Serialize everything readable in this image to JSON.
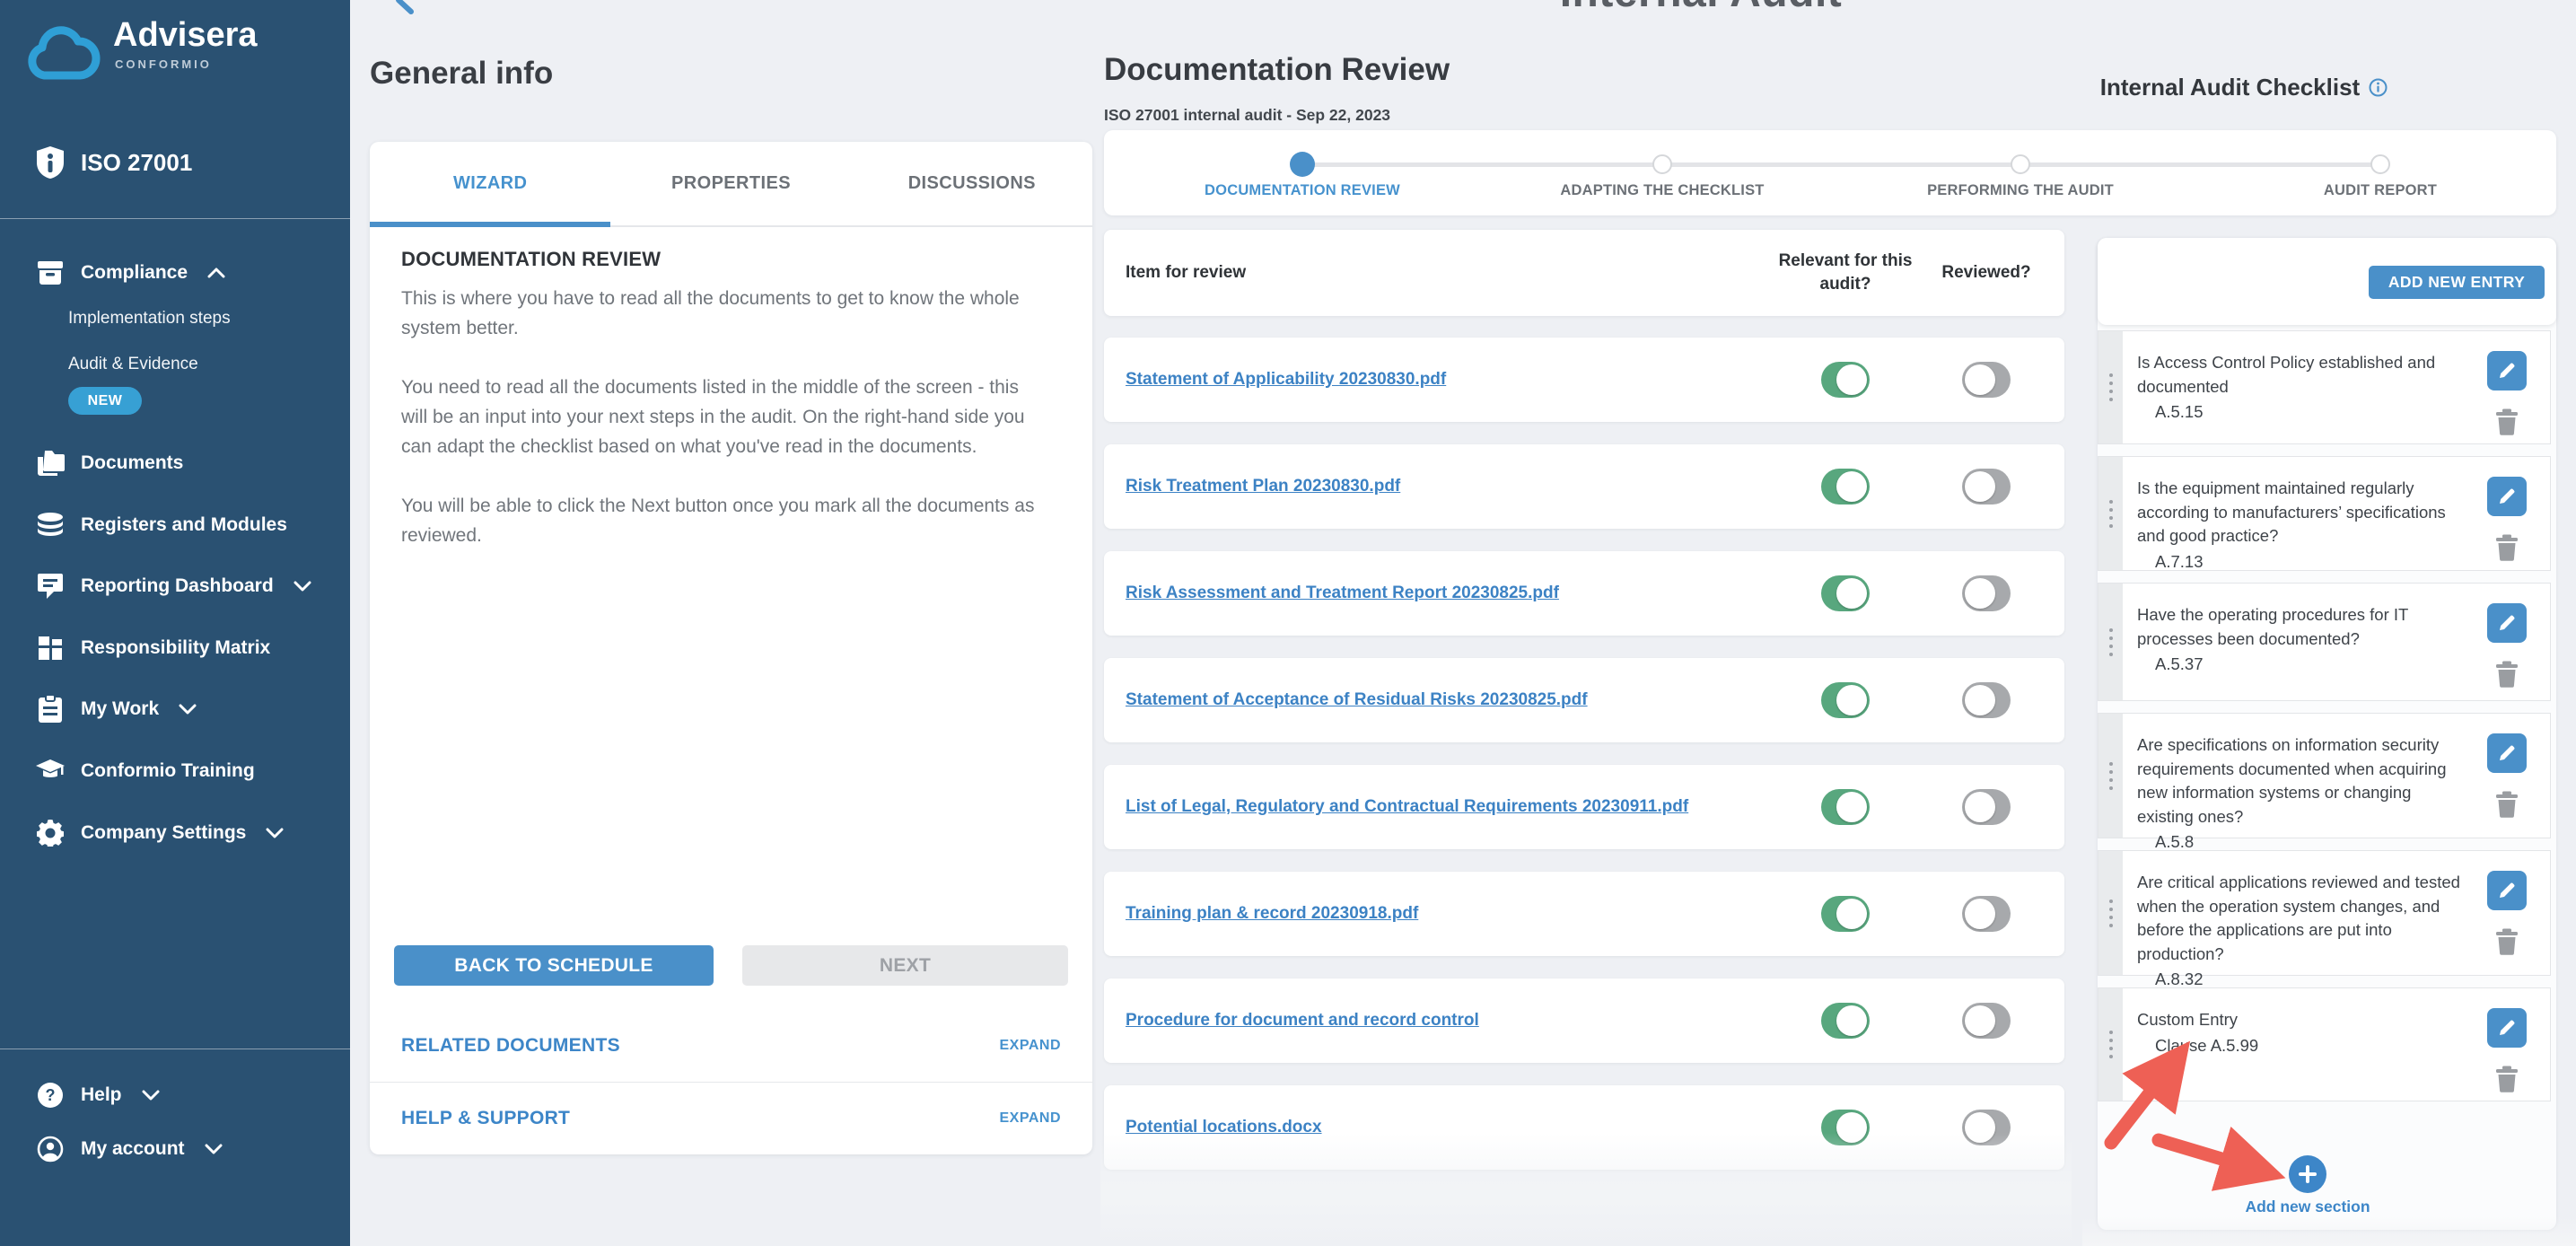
{
  "page": {
    "clipped_title": "Internal Audit"
  },
  "colors": {
    "sidebar_bg": "#2a5172",
    "accent_blue": "#4a90c9",
    "link_blue": "#3c82c4",
    "badge_blue": "#37a0d4",
    "toggle_on_green": "#58a77e",
    "toggle_off_gray": "#a7a9ac",
    "arrow_red": "#ee6055",
    "page_bg": "#eef0f4"
  },
  "sidebar": {
    "brand": "Advisera",
    "product": "CONFORMIO",
    "standard": "ISO 27001",
    "compliance": "Compliance",
    "implementation": "Implementation steps",
    "audit_evidence": "Audit & Evidence",
    "new_badge": "NEW",
    "documents": "Documents",
    "registers": "Registers and Modules",
    "reporting": "Reporting Dashboard",
    "responsibility": "Responsibility Matrix",
    "my_work": "My Work",
    "training": "Conformio Training",
    "settings": "Company Settings",
    "help": "Help",
    "account": "My account"
  },
  "general_info": {
    "title": "General info",
    "tabs": [
      {
        "label": "WIZARD",
        "active": true
      },
      {
        "label": "PROPERTIES"
      },
      {
        "label": "DISCUSSIONS"
      }
    ],
    "section_title": "DOCUMENTATION REVIEW",
    "paragraphs": [
      {
        "text": "This is where you have to read all the documents to get to know the whole system better."
      },
      {
        "text": "You need to read all the documents listed in the middle of the screen - this will be an input into your next steps in the audit. On the right-hand side you can adapt the checklist based on what you've read in the documents."
      },
      {
        "text": "You will be able to click the Next button once you mark all the documents as reviewed."
      }
    ],
    "back_button": "BACK TO SCHEDULE",
    "next_button": "NEXT",
    "sections": [
      {
        "label": "RELATED DOCUMENTS",
        "action": "EXPAND"
      },
      {
        "label": "HELP & SUPPORT",
        "action": "EXPAND"
      }
    ]
  },
  "doc_review": {
    "title": "Documentation Review",
    "subtitle": "ISO 27001 internal audit - Sep 22, 2023",
    "steps": [
      {
        "label": "DOCUMENTATION REVIEW",
        "active": true
      },
      {
        "label": "ADAPTING THE CHECKLIST"
      },
      {
        "label": "PERFORMING THE AUDIT"
      },
      {
        "label": "AUDIT REPORT"
      }
    ],
    "table": {
      "col_item": "Item for review",
      "col_relevant": "Relevant for this audit?",
      "col_reviewed": "Reviewed?",
      "rows": [
        {
          "name": "Statement of Applicability 20230830.pdf",
          "relevant": true,
          "reviewed": false
        },
        {
          "name": "Risk Treatment Plan 20230830.pdf",
          "relevant": true,
          "reviewed": false
        },
        {
          "name": "Risk Assessment and Treatment Report 20230825.pdf",
          "relevant": true,
          "reviewed": false
        },
        {
          "name": "Statement of Acceptance of Residual Risks 20230825.pdf",
          "relevant": true,
          "reviewed": false
        },
        {
          "name": "List of Legal, Regulatory and Contractual Requirements 20230911.pdf",
          "relevant": true,
          "reviewed": false
        },
        {
          "name": "Training plan & record 20230918.pdf",
          "relevant": true,
          "reviewed": false
        },
        {
          "name": "Procedure for document and record control",
          "relevant": true,
          "reviewed": false
        },
        {
          "name": "Potential locations.docx",
          "relevant": true,
          "reviewed": false
        }
      ]
    }
  },
  "checklist": {
    "title": "Internal Audit Checklist",
    "add_button": "ADD NEW ENTRY",
    "items": [
      {
        "question": "Is Access Control Policy established and documented",
        "clause": "A.5.15"
      },
      {
        "question": "Is the equipment maintained regularly according to manufacturers’ specifications and good practice?",
        "clause": "A.7.13"
      },
      {
        "question": "Have the operating procedures for IT processes been documented?",
        "clause": "A.5.37"
      },
      {
        "question": "Are specifications on information security requirements documented when acquiring new information systems or changing existing ones?",
        "clause": "A.5.8"
      },
      {
        "question": "Are critical applications reviewed and tested when the operation system changes, and before the applications are put into production?",
        "clause": "A.8.32"
      },
      {
        "question": "Custom Entry",
        "clause": "Clause A.5.99"
      }
    ],
    "add_section_label": "Add new section"
  }
}
